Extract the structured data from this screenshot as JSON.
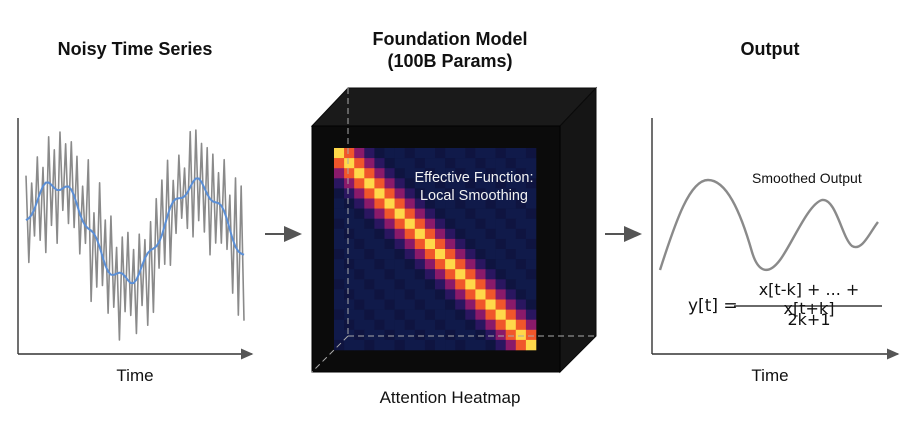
{
  "panels": {
    "left": {
      "title": "Noisy Time Series",
      "xlabel": "Time"
    },
    "middle": {
      "title_line1": "Foundation Model",
      "title_line2": "(100B Params)",
      "caption": "Attention Heatmap",
      "annotation_line1": "Effective Function:",
      "annotation_line2": "Local Smoothing"
    },
    "right": {
      "title": "Output",
      "xlabel": "Time",
      "curve_label": "Smoothed Output"
    }
  },
  "formula": {
    "lhs": "y[t] =",
    "numerator": "x[t-k] + ... + x[t+k]",
    "denominator": "2k+1"
  },
  "colors": {
    "noisy": "#8a8a8a",
    "smooth": "#5b8fd6",
    "output": "#8a8a8a",
    "cube": "#0b0b0b",
    "axis": "#333333"
  }
}
